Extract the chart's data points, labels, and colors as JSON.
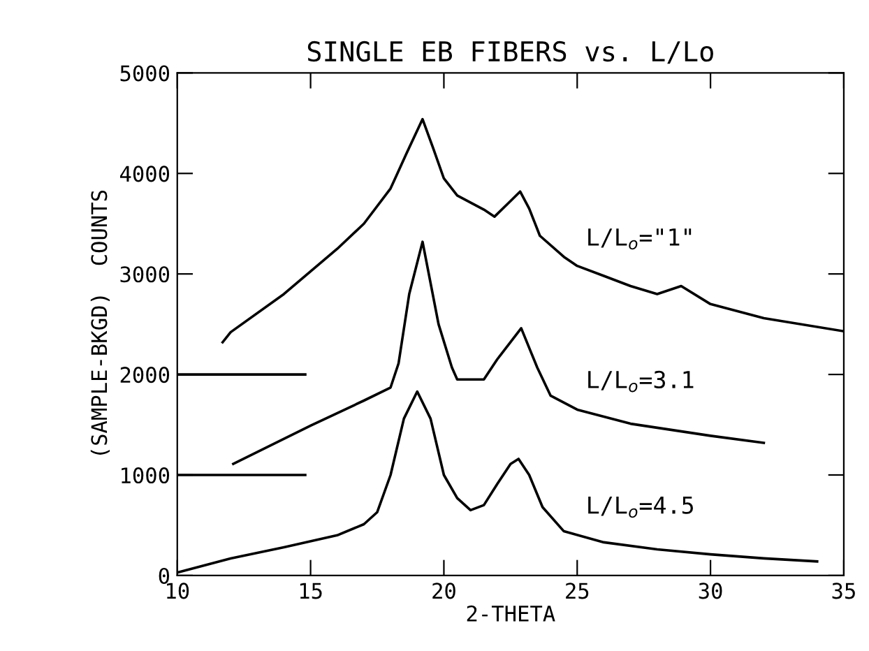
{
  "chart_data": {
    "type": "line",
    "title": "SINGLE EB FIBERS vs. L/Lo",
    "xlabel": "2-THETA",
    "ylabel": "(SAMPLE-BKGD)  COUNTS",
    "xlim": [
      10,
      35
    ],
    "xticks": [
      10,
      15,
      20,
      25,
      30,
      35
    ],
    "ylim": [
      0,
      5000
    ],
    "yticks": [
      0,
      1000,
      2000,
      3000,
      4000,
      5000
    ],
    "grid": false,
    "legend": false,
    "marker": "none",
    "line_style": "solid",
    "series": [
      {
        "name": "L/L$_{o}$=\"1\"",
        "color": "#000000",
        "x": [
          11.7,
          12,
          14,
          16,
          17,
          18,
          18.6,
          19.2,
          19.6,
          20,
          20.5,
          21.5,
          21.9,
          22.4,
          22.86,
          23.2,
          23.6,
          24.5,
          25,
          26,
          27,
          28,
          28.9,
          30,
          32,
          35
        ],
        "values": [
          2320,
          2420,
          2800,
          3250,
          3500,
          3850,
          4200,
          4540,
          4250,
          3950,
          3780,
          3640,
          3570,
          3700,
          3820,
          3650,
          3380,
          3170,
          3080,
          2980,
          2880,
          2800,
          2880,
          2700,
          2560,
          2430
        ]
      },
      {
        "name": "L/L$_{o}$=3.1",
        "color": "#000000",
        "x": [
          12.1,
          15,
          17,
          18,
          18.3,
          18.7,
          19.2,
          19.8,
          20.3,
          20.5,
          21.5,
          22,
          22.9,
          23.5,
          24,
          25,
          27,
          30,
          32
        ],
        "values": [
          1110,
          1490,
          1740,
          1870,
          2110,
          2800,
          3320,
          2500,
          2070,
          1950,
          1950,
          2150,
          2460,
          2070,
          1790,
          1650,
          1510,
          1390,
          1320
        ]
      },
      {
        "name": "L/L$_{o}$=4.5",
        "color": "#000000",
        "x": [
          10,
          12,
          14,
          16,
          17,
          17.5,
          18,
          18.5,
          19,
          19.5,
          20,
          20.5,
          21,
          21.5,
          22,
          22.5,
          22.8,
          23.2,
          23.7,
          24.5,
          26,
          28,
          30,
          32,
          34
        ],
        "values": [
          30,
          170,
          280,
          400,
          510,
          630,
          1000,
          1560,
          1830,
          1560,
          1000,
          770,
          650,
          700,
          910,
          1110,
          1160,
          1000,
          680,
          440,
          330,
          260,
          210,
          170,
          140
        ]
      },
      {
        "color": "#000000",
        "x": [
          10,
          14.8
        ],
        "values": [
          2000,
          2000
        ]
      },
      {
        "color": "#000000",
        "x": [
          10,
          14.8
        ],
        "values": [
          1000,
          1000
        ]
      }
    ]
  }
}
